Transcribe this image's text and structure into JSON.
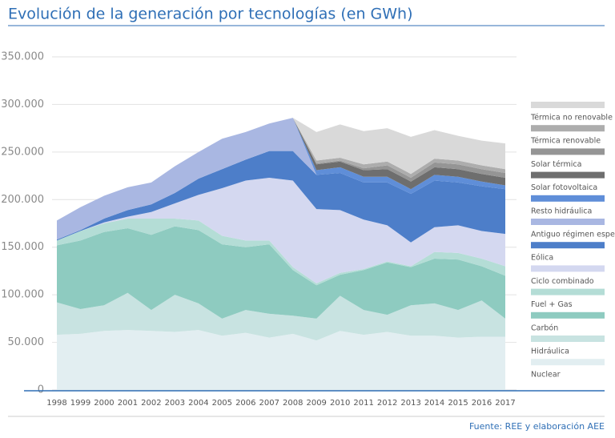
{
  "chart_data": {
    "type": "area",
    "stacked": true,
    "title": "Evolución de la generación por tecnologías (en GWh)",
    "source": "Fuente: REE y elaboración AEE",
    "categories": [
      "1998",
      "1999",
      "2000",
      "2001",
      "2002",
      "2003",
      "2004",
      "2005",
      "2006",
      "2007",
      "2008",
      "2009",
      "2010",
      "2011",
      "2012",
      "2013",
      "2014",
      "2015",
      "2016",
      "2017"
    ],
    "ylim": [
      0,
      350000
    ],
    "yticks": [
      0,
      {
        "value": 50000,
        "label": "50.000"
      },
      {
        "value": 100000,
        "label": "100.000"
      },
      {
        "value": 150000,
        "label": "150.000"
      },
      {
        "value": 200000,
        "label": "200.000"
      },
      {
        "value": 250000,
        "label": "250.000"
      },
      {
        "value": 300000,
        "label": "300.000"
      },
      {
        "value": 350000,
        "label": "350.000"
      }
    ],
    "grid": true,
    "series": [
      {
        "name": "Nuclear",
        "color": "#e2eef1",
        "values": [
          58000,
          59000,
          62000,
          63000,
          62000,
          61000,
          63000,
          57000,
          60000,
          55000,
          59000,
          52000,
          62000,
          58000,
          61000,
          57000,
          57000,
          55000,
          56000,
          56000
        ]
      },
      {
        "name": "Hidráulica",
        "color": "#c8e3e1",
        "values": [
          34000,
          26000,
          27000,
          39000,
          22000,
          39000,
          28000,
          18000,
          24000,
          25000,
          19000,
          23000,
          37000,
          26000,
          18000,
          32000,
          34000,
          29000,
          38000,
          19000
        ]
      },
      {
        "name": "Carbón",
        "color": "#8ecbc0",
        "values": [
          60000,
          72000,
          77000,
          68000,
          79000,
          72000,
          77000,
          78000,
          66000,
          73000,
          48000,
          35000,
          22000,
          42000,
          55000,
          40000,
          47000,
          53000,
          36000,
          45000
        ]
      },
      {
        "name": "Fuel + Gas",
        "color": "#b4ddd6",
        "values": [
          5000,
          10000,
          9000,
          10000,
          17000,
          8000,
          10000,
          9000,
          7000,
          4000,
          3000,
          2000,
          2000,
          1000,
          1000,
          1000,
          7000,
          7000,
          8000,
          10000
        ]
      },
      {
        "name": "Ciclo combinado",
        "color": "#d4d8f0",
        "values": [
          0,
          0,
          1000,
          2000,
          7000,
          16000,
          27000,
          50000,
          63000,
          66000,
          91000,
          78000,
          66000,
          52000,
          38000,
          25000,
          26000,
          29000,
          29000,
          34000
        ]
      },
      {
        "name": "Eólica",
        "color": "#4d7ec9",
        "values": [
          1000,
          1000,
          4000,
          7000,
          8000,
          11000,
          17000,
          20000,
          22000,
          28000,
          31000,
          36000,
          39000,
          39000,
          45000,
          51000,
          49000,
          45000,
          47000,
          47000
        ]
      },
      {
        "name": "Antiguo régimen especial",
        "color": "#a9b7e2",
        "values": [
          20000,
          24000,
          24000,
          24000,
          23000,
          28000,
          28000,
          32000,
          29000,
          29000,
          35000,
          0,
          0,
          0,
          0,
          0,
          0,
          0,
          0,
          0
        ]
      },
      {
        "name": "Resto hidráulica",
        "color": "#5f8ed8",
        "values": [
          0,
          0,
          0,
          0,
          0,
          0,
          0,
          0,
          0,
          0,
          0,
          5000,
          6000,
          6000,
          6000,
          5000,
          6000,
          6000,
          5000,
          4000
        ]
      },
      {
        "name": "Solar fotovoltaica",
        "color": "#6e6e6e",
        "values": [
          0,
          0,
          0,
          0,
          0,
          0,
          0,
          0,
          0,
          0,
          0,
          6000,
          6000,
          7000,
          8000,
          8000,
          8000,
          8000,
          8000,
          8000
        ]
      },
      {
        "name": "Solar térmica",
        "color": "#959595",
        "values": [
          0,
          0,
          0,
          0,
          0,
          0,
          0,
          0,
          0,
          0,
          0,
          1000,
          1000,
          2000,
          4000,
          4000,
          5000,
          5000,
          5000,
          5000
        ]
      },
      {
        "name": "Térmica renovable",
        "color": "#adadad",
        "values": [
          0,
          0,
          0,
          0,
          0,
          0,
          0,
          0,
          0,
          0,
          0,
          3000,
          3000,
          4000,
          4000,
          4000,
          4000,
          4000,
          4000,
          4000
        ]
      },
      {
        "name": "Térmica no renovable",
        "color": "#d9d9d9",
        "values": [
          0,
          0,
          0,
          0,
          0,
          0,
          0,
          0,
          0,
          0,
          0,
          30000,
          35000,
          35000,
          35000,
          39000,
          30000,
          26000,
          26000,
          27000
        ]
      }
    ]
  }
}
